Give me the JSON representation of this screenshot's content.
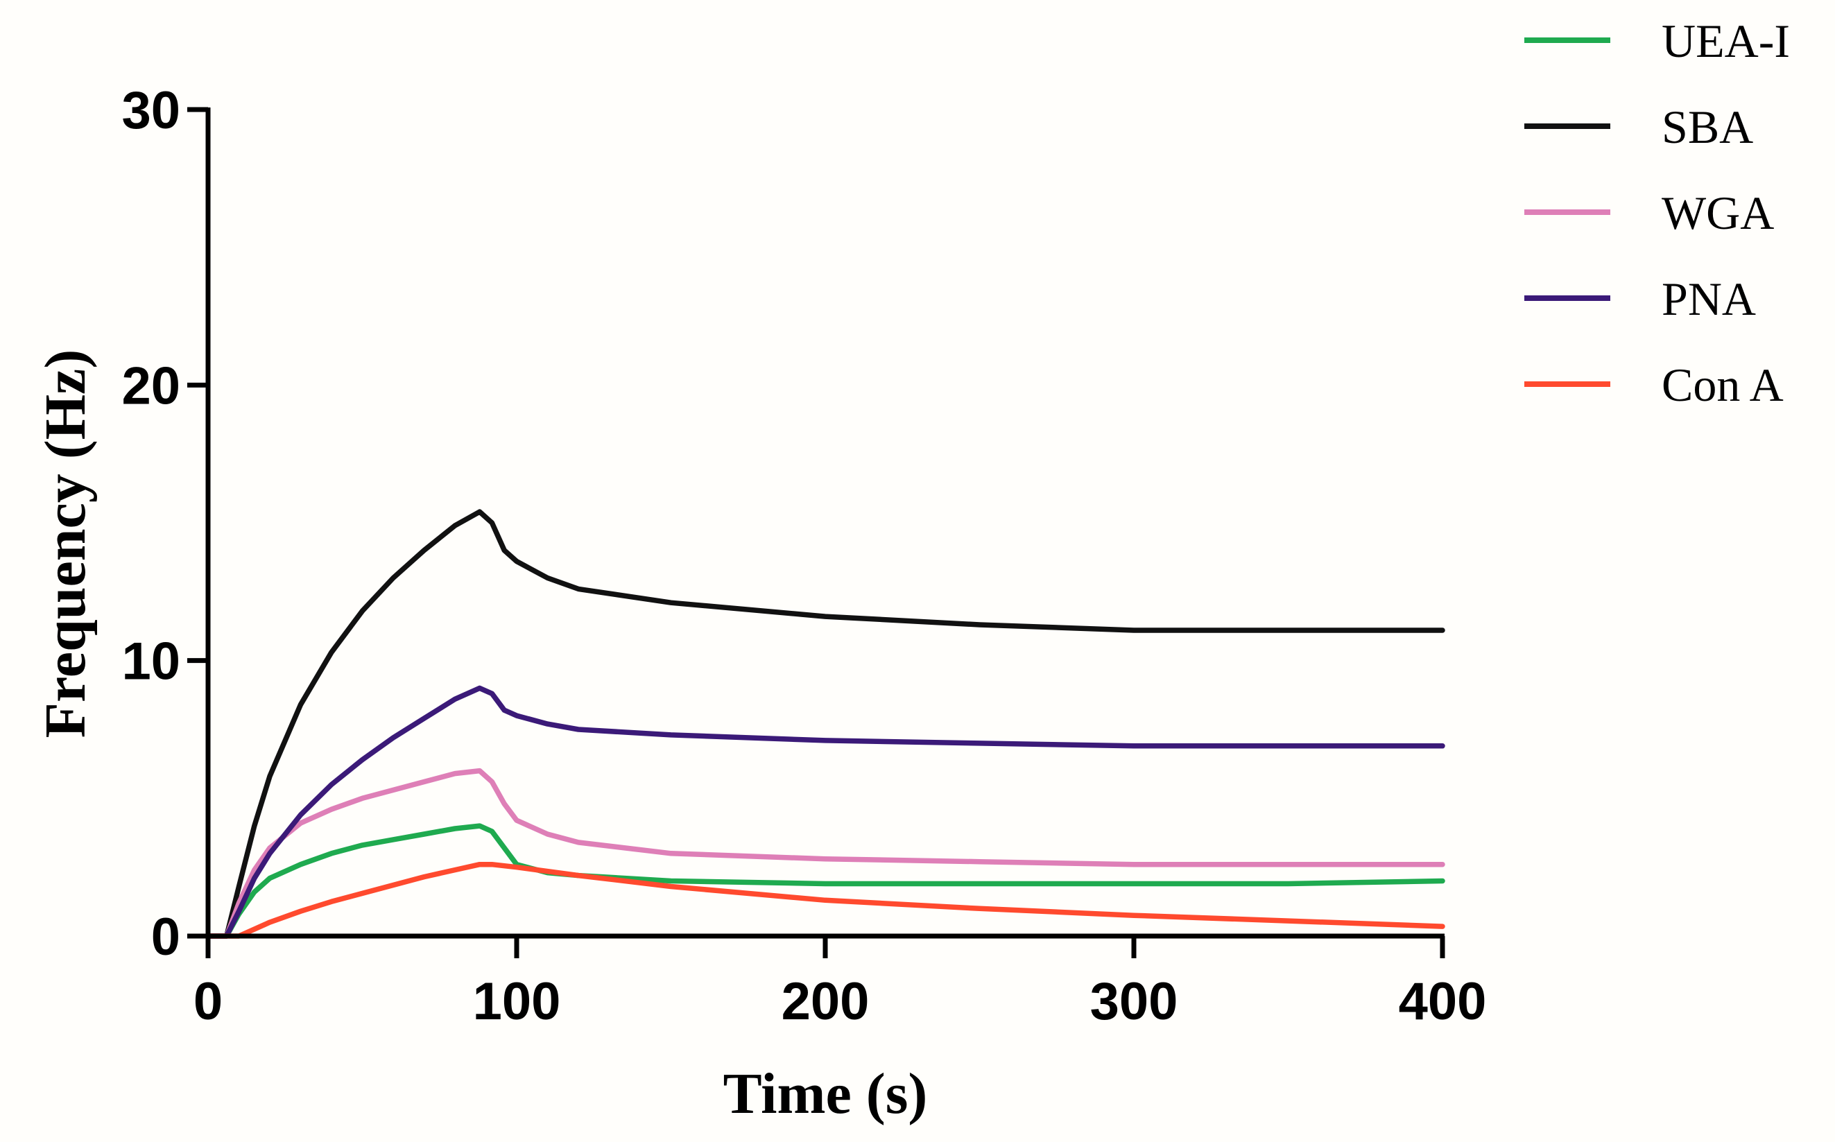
{
  "chart_data": {
    "type": "line",
    "title": "",
    "xlabel": "Time (s)",
    "ylabel": "Frequency (Hz)",
    "xlim": [
      0,
      400
    ],
    "ylim": [
      0,
      30
    ],
    "xticks": [
      0,
      100,
      200,
      300,
      400
    ],
    "yticks": [
      0,
      10,
      20,
      30
    ],
    "xtick_labels": [
      "0",
      "100",
      "200",
      "300",
      "400"
    ],
    "ytick_labels": [
      "0",
      "10",
      "20",
      "30"
    ],
    "grid": false,
    "legend_position": "top-right",
    "series": [
      {
        "name": "UEA-I",
        "color": "#1faa4f",
        "x": [
          0,
          6,
          10,
          15,
          20,
          30,
          40,
          50,
          60,
          70,
          80,
          88,
          92,
          96,
          100,
          110,
          120,
          150,
          200,
          250,
          300,
          350,
          400
        ],
        "y": [
          0,
          0,
          0.8,
          1.6,
          2.1,
          2.6,
          3.0,
          3.3,
          3.5,
          3.7,
          3.9,
          4.0,
          3.8,
          3.2,
          2.6,
          2.3,
          2.2,
          2.0,
          1.9,
          1.9,
          1.9,
          1.9,
          2.0
        ]
      },
      {
        "name": "SBA",
        "color": "#111111",
        "x": [
          0,
          6,
          10,
          15,
          20,
          30,
          40,
          50,
          60,
          70,
          80,
          88,
          92,
          96,
          100,
          110,
          120,
          150,
          200,
          250,
          300,
          350,
          400
        ],
        "y": [
          0,
          0,
          1.8,
          4.0,
          5.8,
          8.4,
          10.3,
          11.8,
          13.0,
          14.0,
          14.9,
          15.4,
          15.0,
          14.0,
          13.6,
          13.0,
          12.6,
          12.1,
          11.6,
          11.3,
          11.1,
          11.1,
          11.1
        ]
      },
      {
        "name": "WGA",
        "color": "#de7fb7",
        "x": [
          0,
          6,
          10,
          15,
          20,
          30,
          40,
          50,
          60,
          70,
          80,
          88,
          92,
          96,
          100,
          110,
          120,
          150,
          200,
          250,
          300,
          350,
          400
        ],
        "y": [
          0,
          0,
          1.2,
          2.4,
          3.2,
          4.1,
          4.6,
          5.0,
          5.3,
          5.6,
          5.9,
          6.0,
          5.6,
          4.8,
          4.2,
          3.7,
          3.4,
          3.0,
          2.8,
          2.7,
          2.6,
          2.6,
          2.6
        ]
      },
      {
        "name": "PNA",
        "color": "#3b1a78",
        "x": [
          0,
          6,
          10,
          15,
          20,
          30,
          40,
          50,
          60,
          70,
          80,
          88,
          92,
          96,
          100,
          110,
          120,
          150,
          200,
          250,
          300,
          350,
          400
        ],
        "y": [
          0,
          0,
          0.9,
          2.1,
          3.0,
          4.4,
          5.5,
          6.4,
          7.2,
          7.9,
          8.6,
          9.0,
          8.8,
          8.2,
          8.0,
          7.7,
          7.5,
          7.3,
          7.1,
          7.0,
          6.9,
          6.9,
          6.9
        ]
      },
      {
        "name": "Con A",
        "color": "#ff4a2e",
        "x": [
          0,
          10,
          15,
          20,
          30,
          40,
          50,
          60,
          70,
          80,
          88,
          92,
          96,
          100,
          110,
          120,
          150,
          200,
          250,
          300,
          350,
          400
        ],
        "y": [
          0,
          0,
          0.25,
          0.5,
          0.9,
          1.25,
          1.55,
          1.85,
          2.15,
          2.4,
          2.6,
          2.6,
          2.55,
          2.5,
          2.35,
          2.2,
          1.8,
          1.3,
          1.0,
          0.75,
          0.55,
          0.35
        ]
      }
    ]
  }
}
